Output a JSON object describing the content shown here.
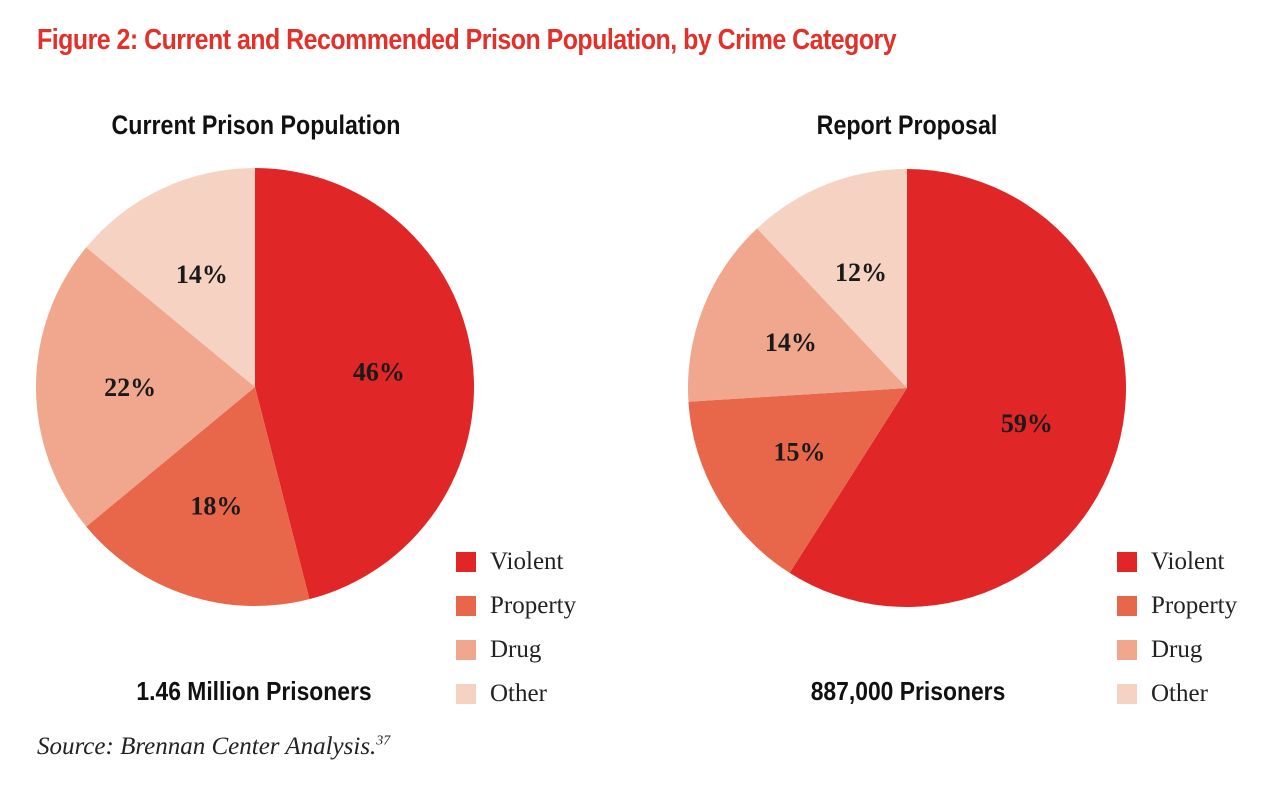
{
  "chart_data": [
    {
      "type": "pie",
      "title": "Current Prison Population",
      "total_label": "1.46 Million Prisoners",
      "categories": [
        "Violent",
        "Property",
        "Drug",
        "Other"
      ],
      "values": [
        46,
        18,
        22,
        14
      ],
      "labels": [
        "46%",
        "18%",
        "22%",
        "14%"
      ],
      "colors": [
        "#e02627",
        "#e8674a",
        "#f0a78e",
        "#f6d2c2"
      ],
      "legend_position": "bottom-right"
    },
    {
      "type": "pie",
      "title": "Report Proposal",
      "total_label": "887,000 Prisoners",
      "categories": [
        "Violent",
        "Property",
        "Drug",
        "Other"
      ],
      "values": [
        59,
        15,
        14,
        12
      ],
      "labels": [
        "59%",
        "15%",
        "14%",
        "12%"
      ],
      "colors": [
        "#e02627",
        "#e8674a",
        "#f0a78e",
        "#f6d2c2"
      ],
      "legend_position": "bottom-right"
    }
  ],
  "figure": {
    "title": "Figure 2: Current and Recommended Prison Population, by Crime Category",
    "source": "Source: Brennan Center Analysis.",
    "source_footnote": "37"
  },
  "legend": {
    "items": [
      "Violent",
      "Property",
      "Drug",
      "Other"
    ]
  }
}
